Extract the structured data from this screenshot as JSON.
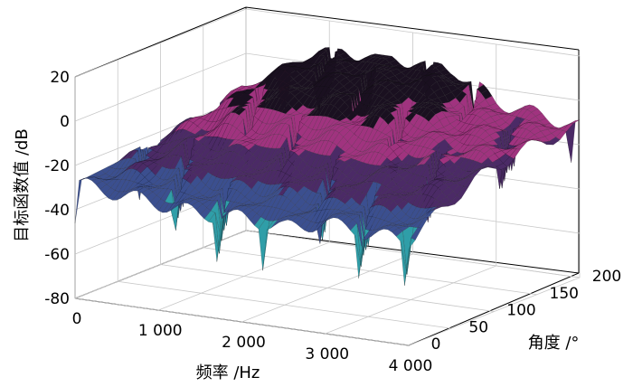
{
  "chart_data": {
    "type": "surface",
    "zlabel": "目标函数值 /dB",
    "xlabel": "频率 /Hz",
    "ylabel": "角度 /°",
    "x_ticks": [
      "0",
      "1 000",
      "2 000",
      "3 000",
      "4 000"
    ],
    "y_ticks": [
      "0",
      "50",
      "100",
      "150",
      "200"
    ],
    "z_ticks": [
      "20",
      "0",
      "-20",
      "-40",
      "-60",
      "-80"
    ],
    "xlim": [
      0,
      4000
    ],
    "ylim": [
      0,
      200
    ],
    "zlim": [
      -80,
      20
    ],
    "grid": true,
    "colormap": [
      "#3fd04a",
      "#2f9ea8",
      "#3b4f8f",
      "#4b2a66",
      "#a0337f",
      "#1a1020"
    ],
    "peak_ridge": {
      "frequency_range": [
        800,
        2900
      ],
      "angle_at_peak": 180,
      "level": 7
    },
    "surface_samples": [
      {
        "frequency": 0,
        "values": [
          -28,
          -27,
          -26,
          -25,
          -24,
          -24,
          -23,
          -22
        ]
      },
      {
        "frequency": 500,
        "values": [
          -30,
          -25,
          -20,
          -15,
          -10,
          -8,
          -6,
          -5
        ]
      },
      {
        "frequency": 1000,
        "values": [
          -32,
          -26,
          -18,
          -10,
          -2,
          3,
          6,
          7
        ]
      },
      {
        "frequency": 1500,
        "values": [
          -34,
          -28,
          -20,
          -12,
          -4,
          2,
          6,
          7
        ]
      },
      {
        "frequency": 2000,
        "values": [
          -33,
          -27,
          -19,
          -11,
          -3,
          3,
          6,
          7
        ]
      },
      {
        "frequency": 2500,
        "values": [
          -35,
          -28,
          -20,
          -12,
          -5,
          1,
          5,
          6
        ]
      },
      {
        "frequency": 3000,
        "values": [
          -30,
          -24,
          -18,
          -14,
          -10,
          -8,
          -7,
          -6
        ]
      },
      {
        "frequency": 3500,
        "values": [
          -32,
          -26,
          -20,
          -16,
          -12,
          -10,
          -9,
          -9
        ]
      },
      {
        "frequency": 4000,
        "values": [
          -33,
          -28,
          -22,
          -18,
          -15,
          -13,
          -12,
          -12
        ]
      }
    ],
    "angle_samples": [
      0,
      25,
      50,
      75,
      100,
      125,
      150,
      200
    ]
  }
}
